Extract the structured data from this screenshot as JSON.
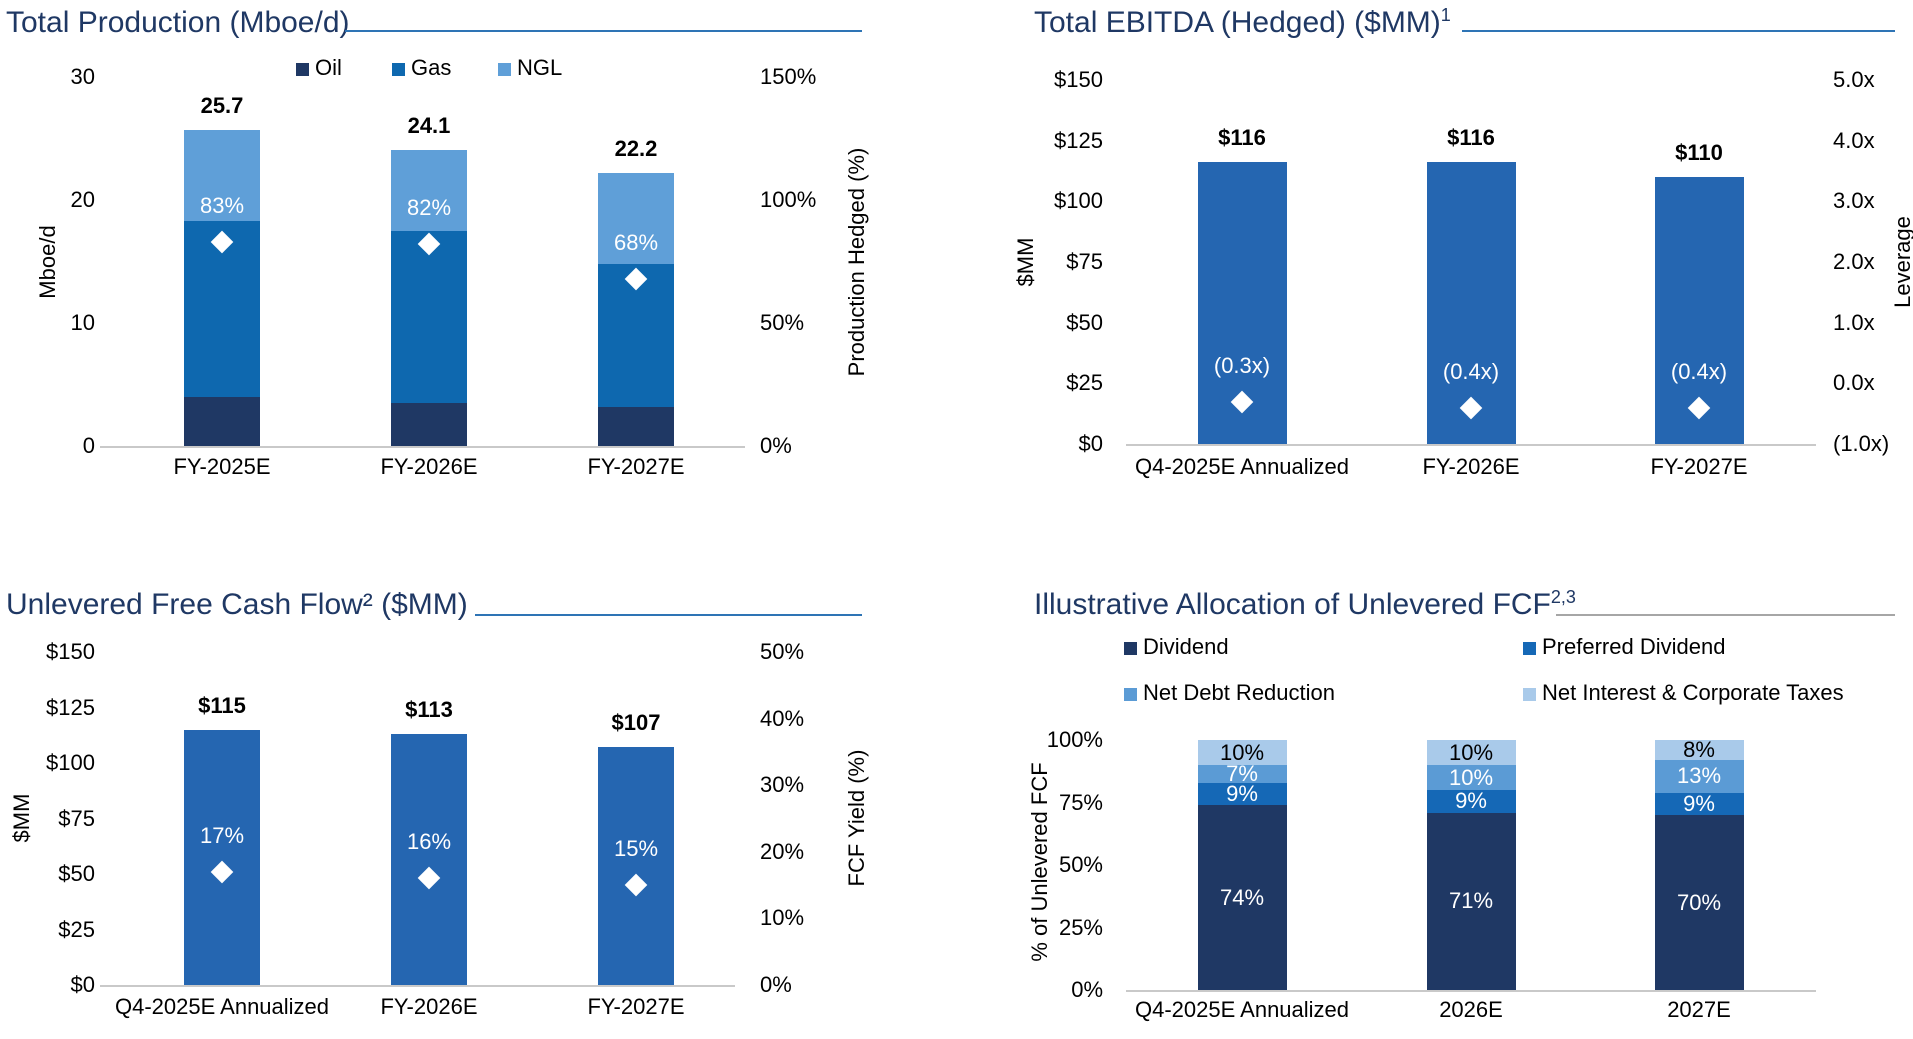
{
  "page": {
    "background": "#FFFFFF"
  },
  "palette": {
    "navy": "#1F3864",
    "gasBlue": "#0E68AF",
    "barBlue": "#2566B1",
    "prefBlue": "#1568B6",
    "ngl": "#5F9FD8",
    "netDebt": "#5B9BD5",
    "pale": "#A9CAEA",
    "titleText": "#1F3864",
    "rule": "#2E74B5",
    "ruleGray": "#A6A6A6",
    "axisLine": "#C9C9C9",
    "text": "#000000",
    "marker": "#FFFFFF"
  },
  "chart_data": [
    {
      "key": "total-production",
      "type": "bar",
      "subtype": "stacked-bar-with-diamond-markers",
      "title": "Total Production (Mboe/d)",
      "title_sup": "",
      "categories": [
        "FY-2025E",
        "FY-2026E",
        "FY-2027E"
      ],
      "series": [
        {
          "name": "Oil",
          "palette": "navy",
          "values": [
            4.0,
            3.5,
            3.2
          ]
        },
        {
          "name": "Gas",
          "palette": "gasBlue",
          "values": [
            14.3,
            14.0,
            11.6
          ]
        },
        {
          "name": "NGL",
          "palette": "ngl",
          "values": [
            7.4,
            6.6,
            7.4
          ]
        }
      ],
      "totals": [
        25.7,
        24.1,
        22.2
      ],
      "total_labels": [
        "25.7",
        "24.1",
        "22.2"
      ],
      "left_axis": {
        "title": "Mboe/d",
        "min": 0,
        "max": 30,
        "ticks": [
          {
            "v": 30,
            "label": "30"
          },
          {
            "v": 20,
            "label": "20"
          },
          {
            "v": 10,
            "label": "10"
          },
          {
            "v": 0,
            "label": "0"
          }
        ]
      },
      "right_axis": {
        "title": "Production Hedged (%)",
        "min": 0,
        "max": 150,
        "ticks": [
          {
            "v": 150,
            "label": "150%"
          },
          {
            "v": 100,
            "label": "100%"
          },
          {
            "v": 50,
            "label": "50%"
          },
          {
            "v": 0,
            "label": "0%"
          }
        ]
      },
      "markers": {
        "name": "Production Hedged (%)",
        "axis": "right",
        "values": [
          83,
          82,
          68
        ],
        "labels": [
          "83%",
          "82%",
          "68%"
        ]
      },
      "legend_position": "top",
      "grid": "off"
    },
    {
      "key": "total-ebitda-hedged",
      "type": "bar",
      "subtype": "bar-with-diamond-markers",
      "title": "Total EBITDA (Hedged) ($MM)",
      "title_sup": "1",
      "categories": [
        "Q4-2025E Annualized",
        "FY-2026E",
        "FY-2027E"
      ],
      "series": [
        {
          "name": "EBITDA",
          "palette": "barBlue",
          "values": [
            116,
            116,
            110
          ]
        }
      ],
      "totals": [
        116,
        116,
        110
      ],
      "total_labels": [
        "$116",
        "$116",
        "$110"
      ],
      "left_axis": {
        "title": "$MM",
        "min": 0,
        "max": 150,
        "ticks": [
          {
            "v": 150,
            "label": "$150"
          },
          {
            "v": 125,
            "label": "$125"
          },
          {
            "v": 100,
            "label": "$100"
          },
          {
            "v": 75,
            "label": "$75"
          },
          {
            "v": 50,
            "label": "$50"
          },
          {
            "v": 25,
            "label": "$25"
          },
          {
            "v": 0,
            "label": "$0"
          }
        ]
      },
      "right_axis": {
        "title": "Leverage",
        "min": -1,
        "max": 5,
        "ticks": [
          {
            "v": 5,
            "label": "5.0x"
          },
          {
            "v": 4,
            "label": "4.0x"
          },
          {
            "v": 3,
            "label": "3.0x"
          },
          {
            "v": 2,
            "label": "2.0x"
          },
          {
            "v": 1,
            "label": "1.0x"
          },
          {
            "v": 0,
            "label": "0.0x"
          },
          {
            "v": -1,
            "label": "(1.0x)"
          }
        ]
      },
      "markers": {
        "name": "Leverage",
        "axis": "right",
        "values": [
          -0.3,
          -0.4,
          -0.4
        ],
        "labels": [
          "(0.3x)",
          "(0.4x)",
          "(0.4x)"
        ]
      },
      "legend_position": "none",
      "grid": "off"
    },
    {
      "key": "unlevered-free-cash-flow",
      "type": "bar",
      "subtype": "bar-with-diamond-markers",
      "title": "Unlevered Free Cash Flow² ($MM)",
      "title_sup": "",
      "categories": [
        "Q4-2025E Annualized",
        "FY-2026E",
        "FY-2027E"
      ],
      "series": [
        {
          "name": "Unlevered FCF",
          "palette": "barBlue",
          "values": [
            115,
            113,
            107
          ]
        }
      ],
      "totals": [
        115,
        113,
        107
      ],
      "total_labels": [
        "$115",
        "$113",
        "$107"
      ],
      "left_axis": {
        "title": "$MM",
        "min": 0,
        "max": 150,
        "ticks": [
          {
            "v": 150,
            "label": "$150"
          },
          {
            "v": 125,
            "label": "$125"
          },
          {
            "v": 100,
            "label": "$100"
          },
          {
            "v": 75,
            "label": "$75"
          },
          {
            "v": 50,
            "label": "$50"
          },
          {
            "v": 25,
            "label": "$25"
          },
          {
            "v": 0,
            "label": "$0"
          }
        ]
      },
      "right_axis": {
        "title": "FCF Yield (%)",
        "min": 0,
        "max": 50,
        "ticks": [
          {
            "v": 50,
            "label": "50%"
          },
          {
            "v": 40,
            "label": "40%"
          },
          {
            "v": 30,
            "label": "30%"
          },
          {
            "v": 20,
            "label": "20%"
          },
          {
            "v": 10,
            "label": "10%"
          },
          {
            "v": 0,
            "label": "0%"
          }
        ]
      },
      "markers": {
        "name": "FCF Yield (%)",
        "axis": "right",
        "values": [
          17,
          16,
          15
        ],
        "labels": [
          "17%",
          "16%",
          "15%"
        ]
      },
      "legend_position": "none",
      "grid": "off"
    },
    {
      "key": "illustrative-allocation-unlevered-fcf",
      "type": "bar",
      "subtype": "stacked-100pct-bar",
      "title": "Illustrative Allocation of Unlevered FCF",
      "title_sup": "2,3",
      "categories": [
        "Q4-2025E Annualized",
        "2026E",
        "2027E"
      ],
      "series": [
        {
          "name": "Dividend",
          "palette": "navy",
          "values": [
            74,
            71,
            70
          ],
          "labels": [
            "74%",
            "71%",
            "70%"
          ],
          "label_color": "#FFFFFF"
        },
        {
          "name": "Preferred Dividend",
          "palette": "prefBlue",
          "values": [
            9,
            9,
            9
          ],
          "labels": [
            "9%",
            "9%",
            "9%"
          ],
          "label_color": "#FFFFFF"
        },
        {
          "name": "Net Debt Reduction",
          "palette": "netDebt",
          "values": [
            7,
            10,
            13
          ],
          "labels": [
            "7%",
            "10%",
            "13%"
          ],
          "label_color": "#FFFFFF"
        },
        {
          "name": "Net Interest & Corporate Taxes",
          "palette": "pale",
          "values": [
            10,
            10,
            8
          ],
          "labels": [
            "10%",
            "10%",
            "8%"
          ],
          "label_color": "#000000"
        }
      ],
      "total_labels": [
        "",
        "",
        ""
      ],
      "left_axis": {
        "title": "% of Unlevered FCF",
        "min": 0,
        "max": 100,
        "ticks": [
          {
            "v": 100,
            "label": "100%"
          },
          {
            "v": 75,
            "label": "75%"
          },
          {
            "v": 50,
            "label": "50%"
          },
          {
            "v": 25,
            "label": "25%"
          },
          {
            "v": 0,
            "label": "0%"
          }
        ]
      },
      "legend_position": "top-two-columns",
      "grid": "off"
    }
  ]
}
